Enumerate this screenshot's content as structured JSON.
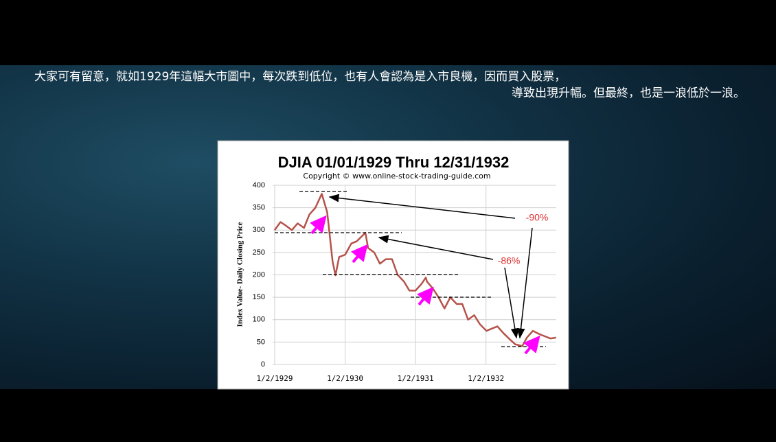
{
  "caption": [
    "大家可有留意，就如1929年這幅大市圖中，每次跌到低位，也有人會認為是入市良機，因而買入股票，",
    "導致出現升幅。但最終，也是一浪低於一浪。"
  ],
  "chart_data": {
    "type": "line",
    "title": "DJIA 01/01/1929 Thru 12/31/1932",
    "subtitle": "Copyright © www.online-stock-trading-guide.com",
    "y_label": "Index Value- Daily Closing Price",
    "annotations": [
      "-90%",
      "-86%"
    ],
    "x": [
      "1/2/1929",
      "2/1/1929",
      "3/1/1929",
      "4/1/1929",
      "5/1/1929",
      "6/3/1929",
      "7/1/1929",
      "8/1/1929",
      "9/3/1929",
      "10/1/1929",
      "10/29/1929",
      "11/13/1929",
      "12/2/1929",
      "1/2/1930",
      "2/3/1930",
      "3/3/1930",
      "4/17/1930",
      "5/1/1930",
      "6/2/1930",
      "7/1/1930",
      "8/1/1930",
      "9/2/1930",
      "10/1/1930",
      "11/3/1930",
      "12/1/1930",
      "1/2/1931",
      "2/2/1931",
      "2/24/1931",
      "3/2/1931",
      "4/1/1931",
      "5/1/1931",
      "6/1/1931",
      "7/1/1931",
      "8/3/1931",
      "9/1/1931",
      "10/1/1931",
      "11/2/1931",
      "12/1/1931",
      "1/4/1932",
      "2/1/1932",
      "3/1/1932",
      "4/1/1932",
      "5/2/1932",
      "6/1/1932",
      "7/8/1932",
      "8/1/1932",
      "9/1/1932",
      "10/3/1932",
      "11/1/1932",
      "12/1/1932",
      "12/30/1932"
    ],
    "series": [
      {
        "name": "DJIA",
        "color": "#b5524a",
        "values": [
          300,
          318,
          310,
          300,
          315,
          305,
          335,
          350,
          381,
          340,
          230,
          199,
          240,
          245,
          270,
          275,
          294,
          260,
          250,
          225,
          235,
          235,
          200,
          185,
          165,
          165,
          180,
          194,
          185,
          170,
          150,
          125,
          150,
          135,
          135,
          100,
          110,
          90,
          75,
          80,
          85,
          70,
          57,
          45,
          41,
          60,
          75,
          68,
          63,
          58,
          60
        ]
      }
    ],
    "xlim": [
      "1/2/1929",
      "12/31/1932"
    ],
    "xticks": [
      "1/2/1929",
      "1/2/1930",
      "1/2/1931",
      "1/2/1932"
    ],
    "ylim": [
      0,
      400
    ],
    "yticks": [
      0,
      50,
      100,
      150,
      200,
      250,
      300,
      350,
      400
    ],
    "grid": true
  }
}
